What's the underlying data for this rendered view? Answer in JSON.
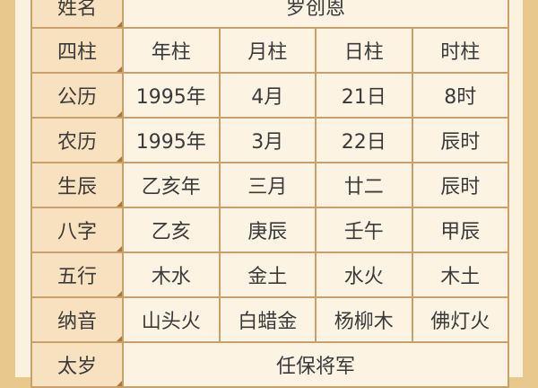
{
  "name_row": {
    "label": "姓名",
    "value": "罗创恩"
  },
  "header_row": {
    "label": "四柱",
    "cols": [
      "年柱",
      "月柱",
      "日柱",
      "时柱"
    ]
  },
  "rows": [
    {
      "label": "公历",
      "cols": [
        "1995年",
        "4月",
        "21日",
        "8时"
      ]
    },
    {
      "label": "农历",
      "cols": [
        "1995年",
        "3月",
        "22日",
        "辰时"
      ]
    },
    {
      "label": "生辰",
      "cols": [
        "乙亥年",
        "三月",
        "廿二",
        "辰时"
      ]
    },
    {
      "label": "八字",
      "cols": [
        "乙亥",
        "庚辰",
        "壬午",
        "甲辰"
      ]
    },
    {
      "label": "五行",
      "cols": [
        "木水",
        "金土",
        "水火",
        "木土"
      ]
    },
    {
      "label": "纳音",
      "cols": [
        "山头火",
        "白蜡金",
        "杨柳木",
        "佛灯火"
      ]
    }
  ],
  "taisui_row": {
    "label": "太岁",
    "value": "任保将军"
  },
  "colors": {
    "background": "#e8c88c",
    "label_cell": "#f7e1bf",
    "value_cell": "#fdf3e3",
    "border": "#c9a06a"
  }
}
